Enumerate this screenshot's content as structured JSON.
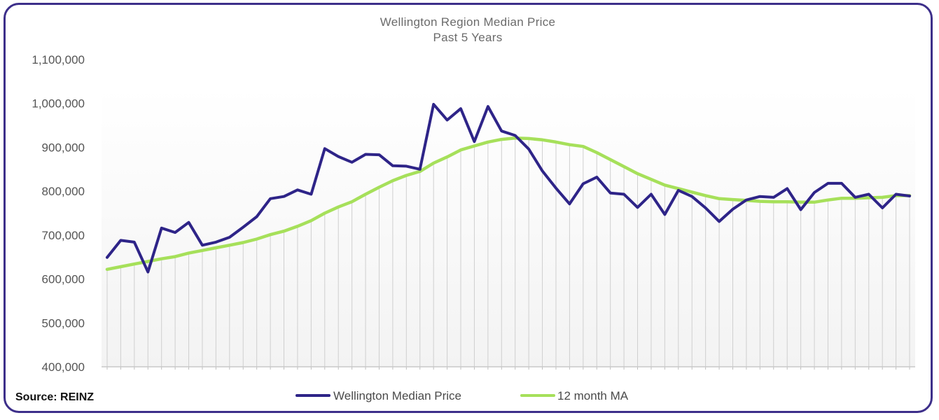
{
  "colors": {
    "frame": "#3d2f8a",
    "median_series": "#2e2488",
    "ma_series": "#a6e05a",
    "drop_lines": "#cfcfcf"
  },
  "source_label": "Source: REINZ",
  "chart_data": {
    "type": "line",
    "title": "Wellington Region Median Price",
    "subtitle": "Past 5 Years",
    "xlabel": "",
    "ylabel": "",
    "ylim": [
      400000,
      1100000
    ],
    "y_ticks": [
      400000,
      500000,
      600000,
      700000,
      800000,
      900000,
      1000000,
      1100000
    ],
    "y_tick_labels": [
      "400,000",
      "500,000",
      "600,000",
      "700,000",
      "800,000",
      "900,000",
      "1,000,000",
      "1,100,000"
    ],
    "legend_position": "bottom",
    "grid": false,
    "drop_lines": true,
    "series": [
      {
        "name": "Wellington Median Price",
        "color": "#2e2488",
        "values": [
          649000,
          688000,
          684000,
          616000,
          716000,
          706000,
          729000,
          677000,
          684000,
          695000,
          718000,
          742000,
          783000,
          788000,
          803000,
          793000,
          897000,
          879000,
          866000,
          884000,
          883000,
          858000,
          857000,
          850000,
          998000,
          962000,
          988000,
          913000,
          993000,
          937000,
          927000,
          896000,
          846000,
          807000,
          771000,
          817000,
          832000,
          796000,
          793000,
          763000,
          793000,
          747000,
          802000,
          788000,
          762000,
          731000,
          759000,
          780000,
          788000,
          786000,
          806000,
          758000,
          797000,
          818000,
          818000,
          786000,
          793000,
          762000,
          793000,
          789000
        ]
      },
      {
        "name": "12 month MA",
        "color": "#a6e05a",
        "values": [
          622000,
          628000,
          634000,
          640000,
          646000,
          651000,
          659000,
          665000,
          671000,
          677000,
          683000,
          691000,
          701000,
          709000,
          720000,
          733000,
          750000,
          764000,
          776000,
          793000,
          809000,
          824000,
          836000,
          845000,
          864000,
          878000,
          894000,
          903000,
          912000,
          918000,
          921000,
          920000,
          917000,
          912000,
          906000,
          902000,
          888000,
          872000,
          856000,
          840000,
          827000,
          814000,
          806000,
          798000,
          790000,
          783000,
          781000,
          779000,
          777000,
          776000,
          776000,
          775000,
          775000,
          780000,
          784000,
          784000,
          785000,
          786000,
          790000,
          790000
        ]
      }
    ]
  }
}
